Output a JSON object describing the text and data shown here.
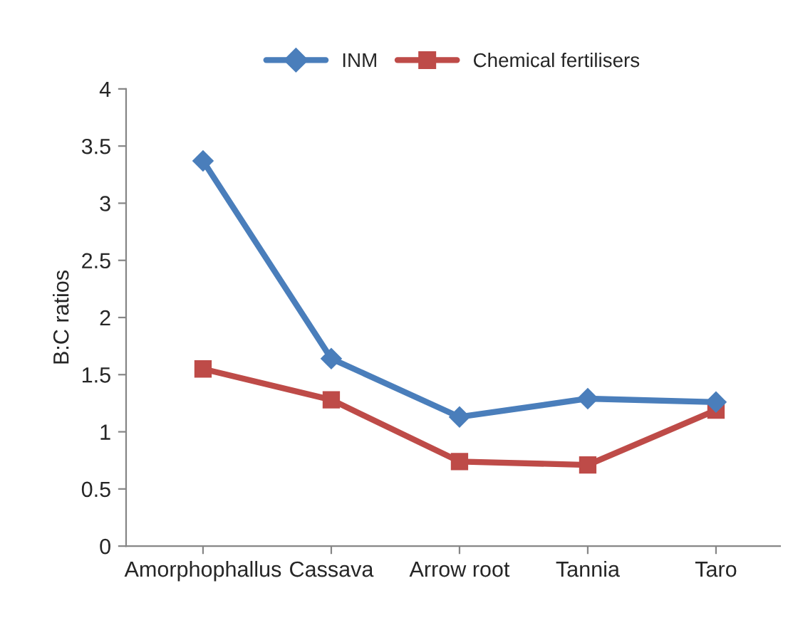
{
  "chart_data": {
    "type": "line",
    "ylabel": "B:C ratios",
    "categories": [
      "Amorphophallus",
      "Cassava",
      "Arrow root",
      "Tannia",
      "Taro"
    ],
    "series": [
      {
        "name": "INM",
        "color": "#4a7ebb",
        "marker": "diamond",
        "values": [
          3.37,
          1.64,
          1.13,
          1.29,
          1.26
        ]
      },
      {
        "name": "Chemical fertilisers",
        "color": "#be4b48",
        "marker": "square",
        "values": [
          1.55,
          1.28,
          0.74,
          0.71,
          1.19
        ]
      }
    ],
    "ylim": [
      0,
      4
    ],
    "yticks": [
      0,
      0.5,
      1,
      1.5,
      2,
      2.5,
      3,
      3.5,
      4
    ],
    "grid": false,
    "legend": "top"
  }
}
